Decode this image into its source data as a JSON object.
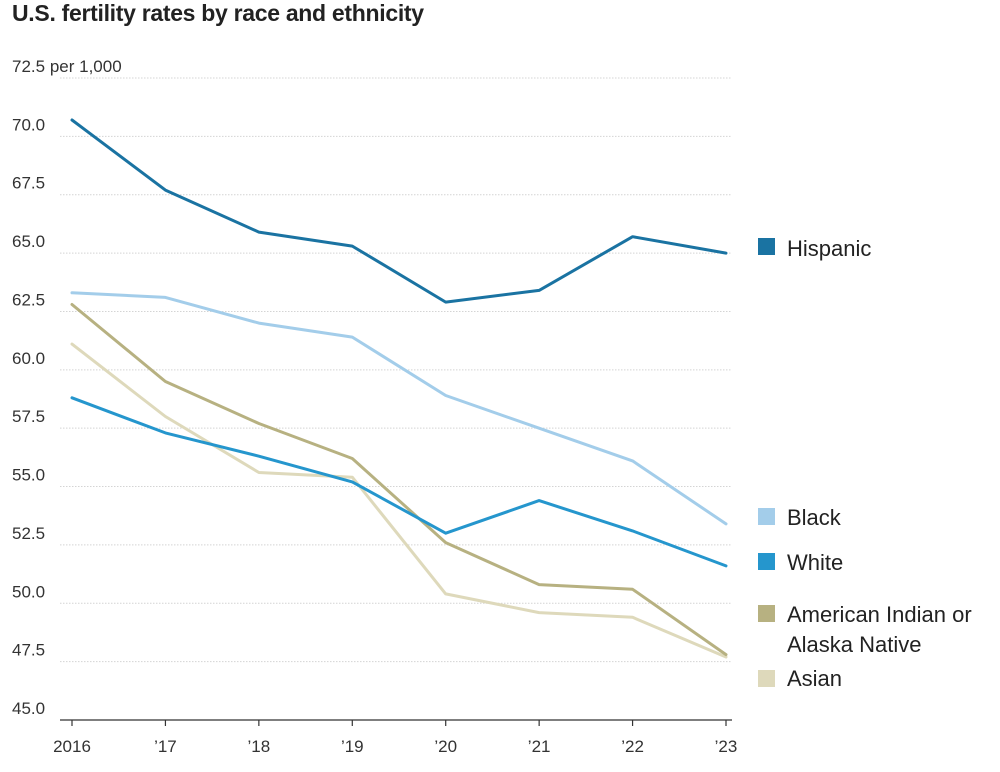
{
  "chart_data": {
    "type": "line",
    "title": "U.S. fertility rates by race and ethnicity",
    "ylabel_unit": "per 1,000",
    "categories": [
      "2016",
      "’17",
      "’18",
      "’19",
      "’20",
      "’21",
      "’22",
      "’23"
    ],
    "yticks": [
      "72.5",
      "70.0",
      "67.5",
      "65.0",
      "62.5",
      "60.0",
      "57.5",
      "55.0",
      "52.5",
      "50.0",
      "47.5",
      "45.0"
    ],
    "ylim": [
      45.0,
      72.5
    ],
    "grid": true,
    "legend_placement": "right",
    "series": [
      {
        "key": "asian",
        "name": "Asian",
        "color": "#ded9bb",
        "values": [
          61.1,
          58.0,
          55.6,
          55.4,
          50.4,
          49.6,
          49.4,
          47.7
        ]
      },
      {
        "key": "aian",
        "name": "American Indian or Alaska Native",
        "name_lines": [
          "American Indian or",
          "Alaska Native"
        ],
        "color": "#b7b181",
        "values": [
          62.8,
          59.5,
          57.7,
          56.2,
          52.6,
          50.8,
          50.6,
          47.8
        ]
      },
      {
        "key": "white",
        "name": "White",
        "color": "#2596cd",
        "values": [
          58.8,
          57.3,
          56.3,
          55.2,
          53.0,
          54.4,
          53.1,
          51.6
        ]
      },
      {
        "key": "black",
        "name": "Black",
        "color": "#a3cdea",
        "values": [
          63.3,
          63.1,
          62.0,
          61.4,
          58.9,
          57.5,
          56.1,
          53.4
        ]
      },
      {
        "key": "hispanic",
        "name": "Hispanic",
        "color": "#1a73a2",
        "values": [
          70.7,
          67.7,
          65.9,
          65.3,
          62.9,
          63.4,
          65.7,
          65.0
        ]
      }
    ]
  }
}
